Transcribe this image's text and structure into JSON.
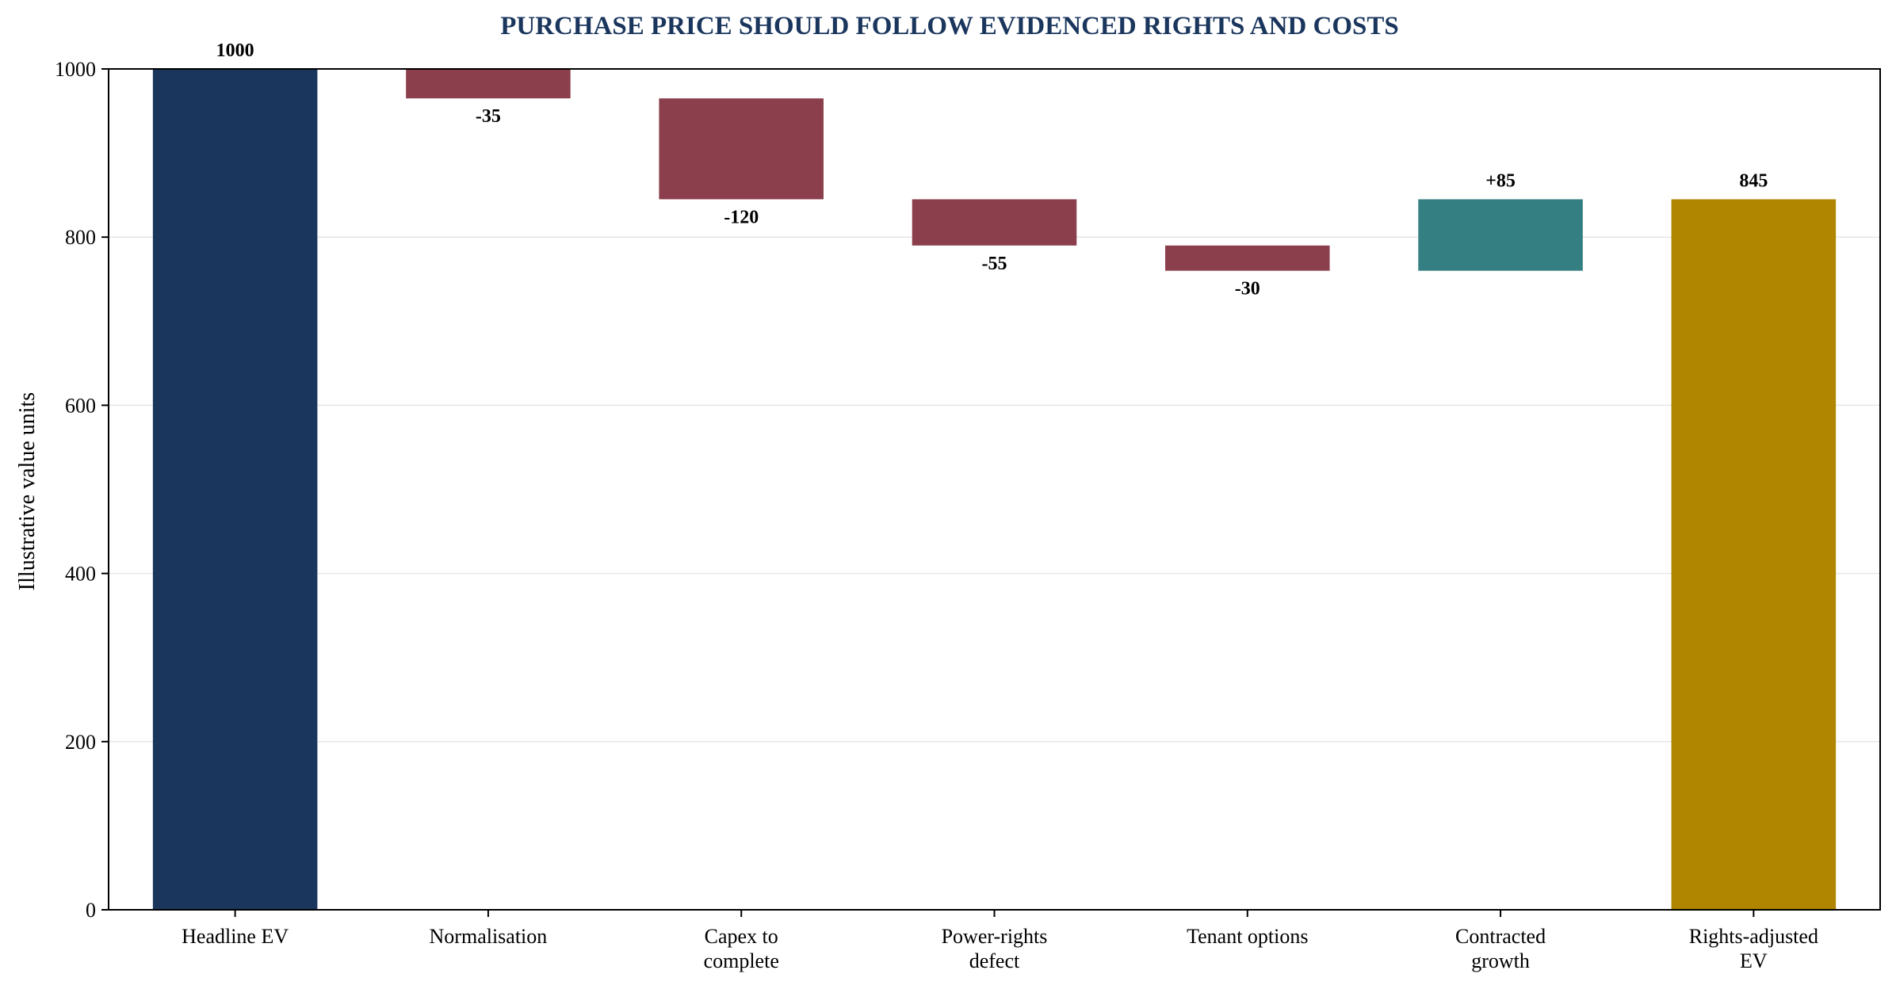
{
  "colors": {
    "start": "#1a365d",
    "decrease": "#8b3f4d",
    "increase": "#337f82",
    "end": "#b08500",
    "title": "#1a365d",
    "grid": "#e6e6e6",
    "axis": "#000000"
  },
  "chart_data": {
    "type": "bar",
    "subtype": "waterfall",
    "title": "PURCHASE PRICE SHOULD FOLLOW EVIDENCED RIGHTS AND COSTS",
    "ylabel": "Illustrative value units",
    "xlabel": "",
    "ylim": [
      0,
      1000
    ],
    "yticks": [
      0,
      200,
      400,
      600,
      800,
      1000
    ],
    "grid": "horizontal",
    "legend": "none",
    "categories": [
      [
        "Headline EV"
      ],
      [
        "Normalisation"
      ],
      [
        "Capex to",
        "complete"
      ],
      [
        "Power-rights",
        "defect"
      ],
      [
        "Tenant options"
      ],
      [
        "Contracted",
        "growth"
      ],
      [
        "Rights-adjusted",
        "EV"
      ]
    ],
    "steps": [
      {
        "kind": "start",
        "value": 1000,
        "label": "1000"
      },
      {
        "kind": "decrease",
        "value": -35,
        "label": "-35"
      },
      {
        "kind": "decrease",
        "value": -120,
        "label": "-120"
      },
      {
        "kind": "decrease",
        "value": -55,
        "label": "-55"
      },
      {
        "kind": "decrease",
        "value": -30,
        "label": "-30"
      },
      {
        "kind": "increase",
        "value": 85,
        "label": "+85"
      },
      {
        "kind": "end",
        "value": 845,
        "label": "845"
      }
    ]
  }
}
